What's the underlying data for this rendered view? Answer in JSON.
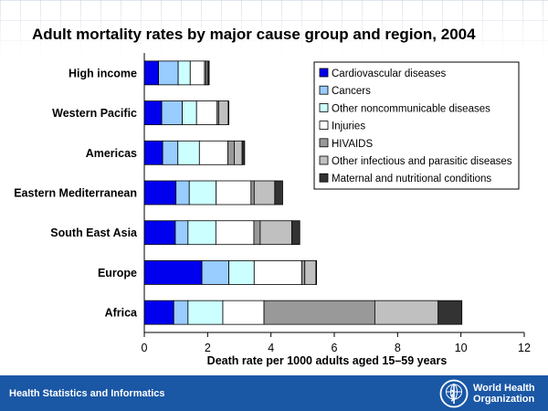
{
  "title": "Adult mortality rates by major cause group and region, 2004",
  "footer": {
    "left_text": "Health Statistics and Informatics",
    "logo_line1": "World Health",
    "logo_line2": "Organization",
    "logo_icon": "who-emblem-icon"
  },
  "chart_data": {
    "type": "bar",
    "orientation": "horizontal",
    "stacked": true,
    "title": "Adult mortality rates by major cause group and region, 2004",
    "xlabel": "Death rate per 1000 adults aged 15–59 years",
    "ylabel": "",
    "xlim": [
      0,
      12
    ],
    "xticks": [
      0,
      2,
      4,
      6,
      8,
      10,
      12
    ],
    "grid": false,
    "legend_position": "top-right",
    "categories": [
      "High income",
      "Western Pacific",
      "Americas",
      "Eastern Mediterranean",
      "South East Asia",
      "Europe",
      "Africa"
    ],
    "series": [
      {
        "name": "Cardiovascular diseases",
        "color": "#0000ee",
        "values": [
          0.45,
          0.55,
          0.58,
          1.0,
          0.98,
          1.82,
          0.93
        ]
      },
      {
        "name": "Cancers",
        "color": "#99ccff",
        "values": [
          0.62,
          0.65,
          0.48,
          0.42,
          0.4,
          0.85,
          0.45
        ]
      },
      {
        "name": "Other noncommunicable diseases",
        "color": "#ccffff",
        "values": [
          0.38,
          0.45,
          0.68,
          0.85,
          0.88,
          0.8,
          1.1
        ]
      },
      {
        "name": "Injuries",
        "color": "#ffffff",
        "values": [
          0.45,
          0.65,
          0.9,
          1.1,
          1.2,
          1.5,
          1.3
        ]
      },
      {
        "name": "HIVAIDS",
        "color": "#999999",
        "values": [
          0.05,
          0.05,
          0.2,
          0.1,
          0.2,
          0.1,
          3.5
        ]
      },
      {
        "name": "Other infectious and parasitic diseases",
        "color": "#c0c0c0",
        "values": [
          0.05,
          0.3,
          0.25,
          0.65,
          1.0,
          0.35,
          2.0
        ]
      },
      {
        "name": "Maternal and nutritional conditions",
        "color": "#333333",
        "values": [
          0.05,
          0.02,
          0.08,
          0.25,
          0.25,
          0.02,
          0.75
        ]
      }
    ]
  }
}
